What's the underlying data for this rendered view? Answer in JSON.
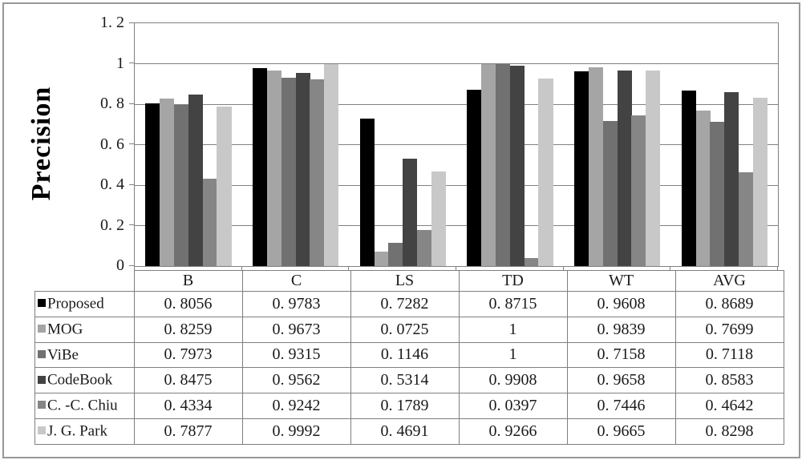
{
  "chart_data": {
    "type": "bar",
    "title": "",
    "xlabel": "",
    "ylabel": "Precision",
    "categories": [
      "B",
      "C",
      "LS",
      "TD",
      "WT",
      "AVG"
    ],
    "series": [
      {
        "name": "Proposed",
        "color": "#000000",
        "values": [
          0.8056,
          0.9783,
          0.7282,
          0.8715,
          0.9608,
          0.8689
        ]
      },
      {
        "name": "MOG",
        "color": "#a5a5a5",
        "values": [
          0.8259,
          0.9673,
          0.0725,
          1,
          0.9839,
          0.7699
        ]
      },
      {
        "name": "ViBe",
        "color": "#717171",
        "values": [
          0.7973,
          0.9315,
          0.1146,
          1,
          0.7158,
          0.7118
        ]
      },
      {
        "name": "CodeBook",
        "color": "#434343",
        "values": [
          0.8475,
          0.9562,
          0.5314,
          0.9908,
          0.9658,
          0.8583
        ]
      },
      {
        "name": "C.-C. Chiu",
        "color": "#868686",
        "values": [
          0.4334,
          0.9242,
          0.1789,
          0.0397,
          0.7446,
          0.4642
        ]
      },
      {
        "name": "J.G. Park",
        "color": "#c8c8c8",
        "values": [
          0.7877,
          0.9992,
          0.4691,
          0.9266,
          0.9665,
          0.8298
        ]
      }
    ],
    "ylim": [
      0,
      1.2
    ],
    "yticks": [
      {
        "value": 1.2,
        "label": "1. 2"
      },
      {
        "value": 1,
        "label": "1"
      },
      {
        "value": 0.8,
        "label": "0. 8"
      },
      {
        "value": 0.6,
        "label": "0. 6"
      },
      {
        "value": 0.4,
        "label": "0. 4"
      },
      {
        "value": 0.2,
        "label": "0. 2"
      },
      {
        "value": 0,
        "label": "0"
      }
    ],
    "grid": true,
    "legend_position": "data-table-left-column",
    "bar_gap_ratio": 1.5
  },
  "table": {
    "column_headers": [
      "B",
      "C",
      "LS",
      "TD",
      "WT",
      "AVG"
    ],
    "rows": [
      {
        "label": "Proposed",
        "swatch_color": "#000000",
        "values": [
          "0. 8056",
          "0. 9783",
          "0. 7282",
          "0. 8715",
          "0. 9608",
          "0. 8689"
        ]
      },
      {
        "label": "MOG",
        "swatch_color": "#a5a5a5",
        "values": [
          "0. 8259",
          "0. 9673",
          "0. 0725",
          "1",
          "0. 9839",
          "0. 7699"
        ]
      },
      {
        "label": "ViBe",
        "swatch_color": "#717171",
        "values": [
          "0. 7973",
          "0. 9315",
          "0. 1146",
          "1",
          "0. 7158",
          "0. 7118"
        ]
      },
      {
        "label": "CodeBook",
        "swatch_color": "#434343",
        "values": [
          "0. 8475",
          "0. 9562",
          "0. 5314",
          "0. 9908",
          "0. 9658",
          "0. 8583"
        ]
      },
      {
        "label": "C. -C. Chiu",
        "swatch_color": "#868686",
        "values": [
          "0. 4334",
          "0. 9242",
          "0. 1789",
          "0. 0397",
          "0. 7446",
          "0. 4642"
        ]
      },
      {
        "label": "J. G. Park",
        "swatch_color": "#c8c8c8",
        "values": [
          "0. 7877",
          "0. 9992",
          "0. 4691",
          "0. 9266",
          "0. 9665",
          "0. 8298"
        ]
      }
    ]
  },
  "colors": {
    "figure_border": "#989898",
    "plot_border": "#808080",
    "gridline": "#808080",
    "table_border": "#7f7f7f",
    "text": "#1a1a1a"
  }
}
